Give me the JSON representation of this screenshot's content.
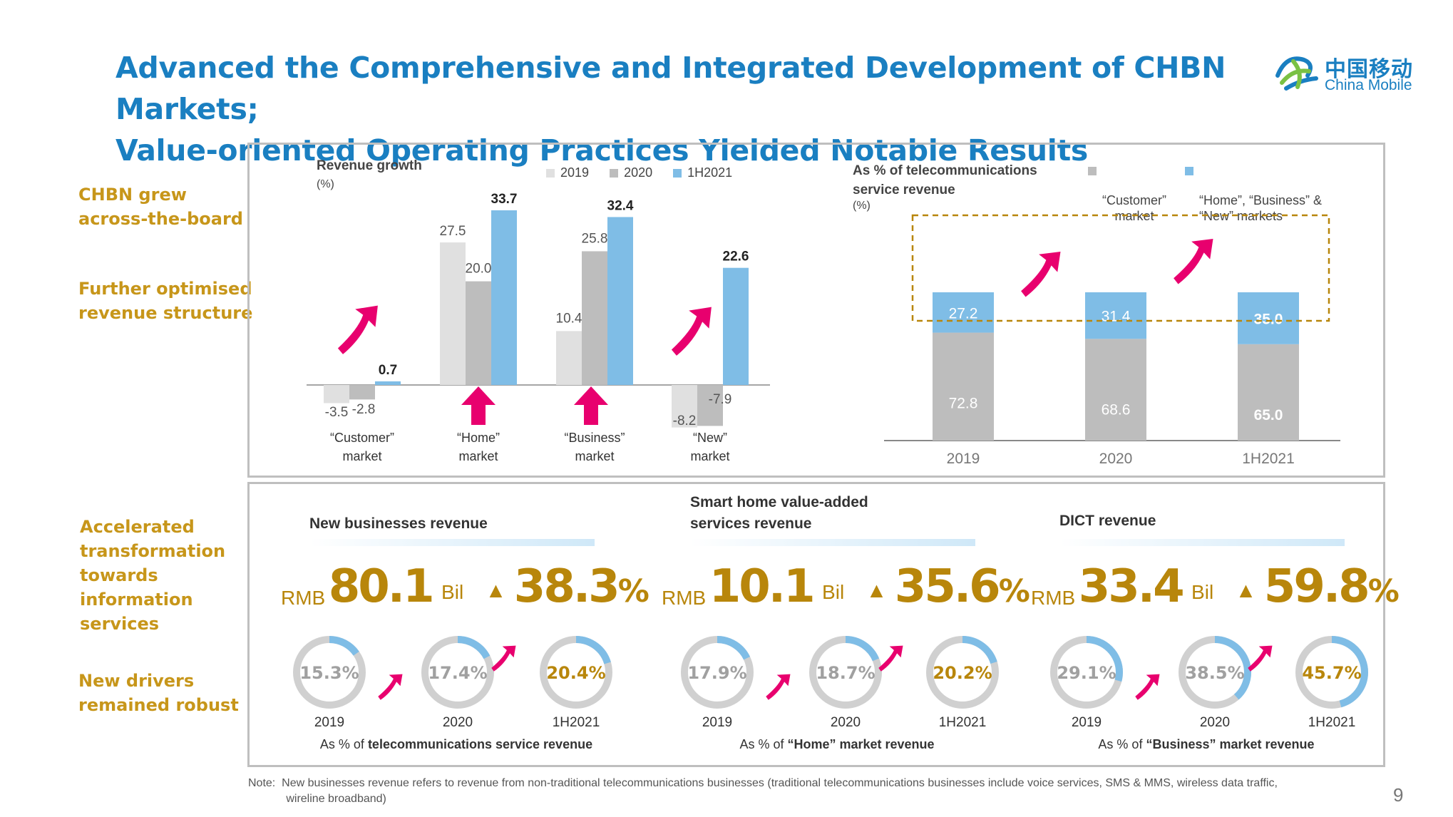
{
  "title": "Advanced the Comprehensive and Integrated Development of CHBN Markets;\nValue-oriented Operating Practices Yielded Notable Results",
  "logo": {
    "cn": "中国移动",
    "en": "China Mobile"
  },
  "side_labels": {
    "l1": "CHBN grew\nacross-the-board",
    "l2": "Further optimised\nrevenue structure",
    "l3": "Accelerated\ntransformation\ntowards\ninformation\nservices",
    "l4": "New drivers\nremained robust"
  },
  "colors": {
    "c2019": "#e0e0e0",
    "c2020": "#bdbdbd",
    "c1h2021": "#7fbde6",
    "accent": "#e8006e",
    "gold": "#b8860b",
    "blue": "#1a7fc1"
  },
  "chart_data": [
    {
      "type": "bar",
      "title": "Revenue growth",
      "unit": "(%)",
      "categories": [
        "“Customer”\nmarket",
        "“Home”\nmarket",
        "“Business”\nmarket",
        "“New”\nmarket"
      ],
      "series": [
        {
          "name": "2019",
          "values": [
            -3.5,
            27.5,
            10.4,
            -8.2
          ]
        },
        {
          "name": "2020",
          "values": [
            -2.8,
            20.0,
            25.8,
            -7.9
          ]
        },
        {
          "name": "1H2021",
          "values": [
            0.7,
            33.7,
            32.4,
            22.6
          ]
        }
      ],
      "value_labels": [
        [
          "-3.5",
          "27.5",
          "10.4",
          "-8.2"
        ],
        [
          "-2.8",
          "20.0",
          "25.8",
          "-7.9"
        ],
        [
          "0.7",
          "33.7",
          "32.4",
          "22.6"
        ]
      ],
      "legend_position": "top"
    },
    {
      "type": "bar",
      "stacked": true,
      "title": "As % of telecommunications\nservice revenue",
      "unit": "(%)",
      "categories": [
        "2019",
        "2020",
        "1H2021"
      ],
      "series": [
        {
          "name": "“Customer”\nmarket",
          "values": [
            72.8,
            68.6,
            65.0
          ]
        },
        {
          "name": "“Home”, “Business” &\n“New” markets",
          "values": [
            27.2,
            31.4,
            35.0
          ]
        }
      ],
      "value_labels": [
        [
          "72.8",
          "68.6",
          "65.0"
        ],
        [
          "27.2",
          "31.4",
          "35.0"
        ]
      ],
      "legend_position": "top-right"
    }
  ],
  "kpis": [
    {
      "title": "New businesses revenue",
      "rmb": "RMB",
      "amount": "80.1",
      "unit": "Bil",
      "growth": "38.3",
      "pct": "%",
      "donut_years": [
        "2019",
        "2020",
        "1H2021"
      ],
      "donut_values": [
        15.3,
        17.4,
        20.4
      ],
      "donut_labels": [
        "15.3%",
        "17.4%",
        "20.4%"
      ],
      "caption_pre": "As % of ",
      "caption_bold": "telecommunications service revenue"
    },
    {
      "title": "Smart home value-added\nservices revenue",
      "rmb": "RMB",
      "amount": "10.1",
      "unit": "Bil",
      "growth": "35.6",
      "pct": "%",
      "donut_years": [
        "2019",
        "2020",
        "1H2021"
      ],
      "donut_values": [
        17.9,
        18.7,
        20.2
      ],
      "donut_labels": [
        "17.9%",
        "18.7%",
        "20.2%"
      ],
      "caption_pre": "As % of ",
      "caption_bold": "“Home” market revenue"
    },
    {
      "title": "DICT revenue",
      "rmb": "RMB",
      "amount": "33.4",
      "unit": "Bil",
      "growth": "59.8",
      "pct": "%",
      "donut_years": [
        "2019",
        "2020",
        "1H2021"
      ],
      "donut_values": [
        29.1,
        38.5,
        45.7
      ],
      "donut_labels": [
        "29.1%",
        "38.5%",
        "45.7%"
      ],
      "caption_pre": "As % of ",
      "caption_bold": "“Business” market revenue"
    }
  ],
  "note": "Note:  New businesses revenue refers to revenue from non-traditional telecommunications businesses (traditional telecommunications businesses include voice services, SMS & MMS, wireless data traffic,\n            wireline broadband)",
  "page_number": "9"
}
